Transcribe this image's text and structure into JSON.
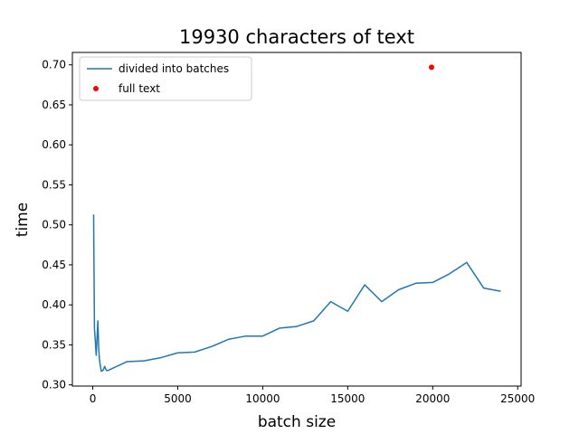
{
  "chart_data": {
    "type": "line",
    "title": "19930 characters of text",
    "xlabel": "batch size",
    "ylabel": "time",
    "xlim": [
      -1200,
      25200
    ],
    "ylim": [
      0.2985,
      0.7155
    ],
    "xticks": [
      0,
      5000,
      10000,
      15000,
      20000,
      25000
    ],
    "xtick_labels": [
      "0",
      "5000",
      "10000",
      "15000",
      "20000",
      "25000"
    ],
    "yticks": [
      0.3,
      0.35,
      0.4,
      0.45,
      0.5,
      0.55,
      0.6,
      0.65,
      0.7
    ],
    "ytick_labels": [
      "0.30",
      "0.35",
      "0.40",
      "0.45",
      "0.50",
      "0.55",
      "0.60",
      "0.65",
      "0.70"
    ],
    "grid": false,
    "legend_position": "top-left",
    "series": [
      {
        "name": "divided into batches",
        "kind": "line",
        "color": "#1f77b4",
        "x": [
          50,
          100,
          150,
          200,
          250,
          300,
          350,
          400,
          500,
          600,
          700,
          800,
          900,
          1000,
          2000,
          3000,
          4000,
          5000,
          6000,
          7000,
          8000,
          9000,
          10000,
          11000,
          12000,
          13000,
          14000,
          15000,
          16000,
          17000,
          18000,
          19000,
          20000,
          21000,
          22000,
          23000,
          24000
        ],
        "y": [
          0.513,
          0.37,
          0.355,
          0.337,
          0.358,
          0.38,
          0.345,
          0.33,
          0.317,
          0.318,
          0.323,
          0.318,
          0.318,
          0.319,
          0.329,
          0.33,
          0.334,
          0.34,
          0.341,
          0.348,
          0.357,
          0.361,
          0.361,
          0.371,
          0.373,
          0.38,
          0.404,
          0.392,
          0.425,
          0.404,
          0.419,
          0.427,
          0.428,
          0.439,
          0.453,
          0.421,
          0.417
        ]
      },
      {
        "name": "full text",
        "kind": "scatter",
        "color": "#ff0000",
        "x": [
          19930
        ],
        "y": [
          0.697
        ]
      }
    ]
  }
}
